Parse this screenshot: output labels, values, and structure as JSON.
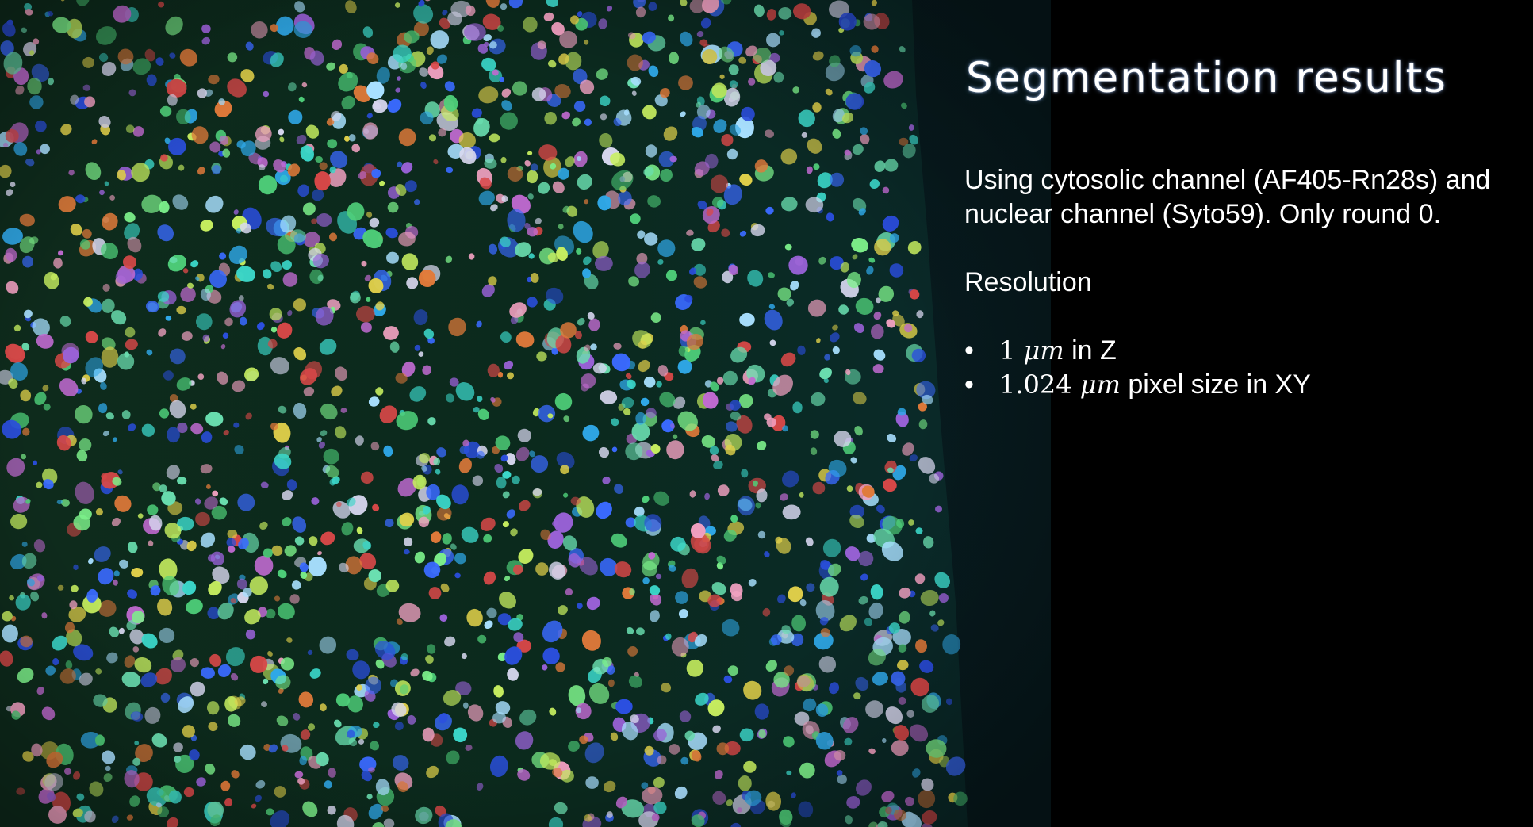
{
  "slide": {
    "title": "Segmentation results",
    "description": "Using cytosolic channel (AF405-Rn28s) and nuclear channel (Syto59). Only round 0.",
    "resolution_heading": "Resolution",
    "bullets": [
      {
        "number": "1",
        "unit": "μm",
        "suffix": " in Z"
      },
      {
        "number": "1.024",
        "unit": "μm",
        "suffix": " pixel size in XY"
      }
    ],
    "bullet_glyph": "•"
  },
  "image": {
    "subject": "segmented-cell-micrograph",
    "background_color": "#0a2a1e",
    "cell_colors": [
      "#7cf08a",
      "#4fd07a",
      "#3bd6c8",
      "#2fa8e8",
      "#2b4fe0",
      "#3a6aff",
      "#9a62d8",
      "#c06ad0",
      "#d8d8f0",
      "#c8f060",
      "#e0d04a",
      "#e07a3a",
      "#d84848",
      "#6adfb0",
      "#a8e0ff",
      "#f0a0c0"
    ]
  }
}
